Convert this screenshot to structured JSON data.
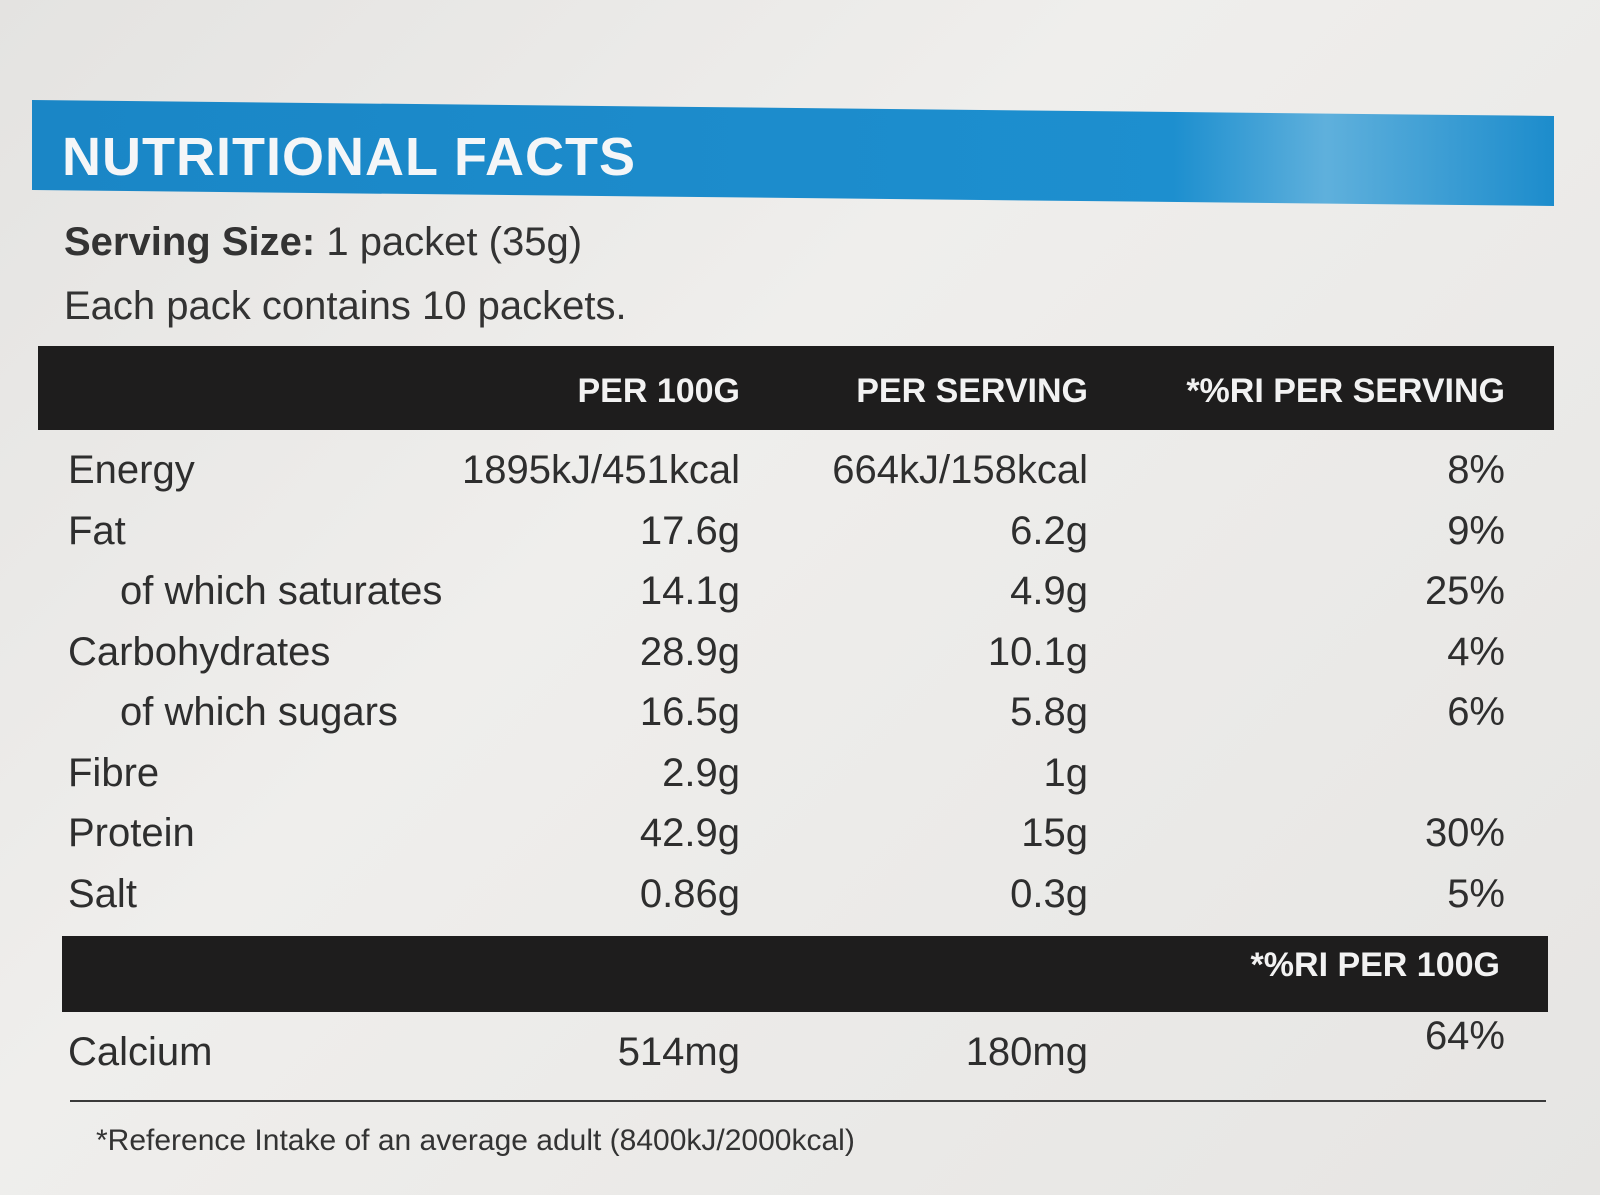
{
  "header": {
    "title": "NUTRITIONAL FACTS",
    "serving_label": "Serving Size:",
    "serving_value": "1 packet (35g)",
    "pack_note": "Each pack contains 10 packets."
  },
  "table": {
    "columns": [
      "PER 100G",
      "PER SERVING",
      "*%RI PER SERVING"
    ],
    "rows": [
      {
        "name": "Energy",
        "per_100g": "1895kJ/451kcal",
        "per_serving": "664kJ/158kcal",
        "ri": "8%"
      },
      {
        "name": "Fat",
        "per_100g": "17.6g",
        "per_serving": "6.2g",
        "ri": "9%",
        "sub": [
          {
            "name": "of which saturates",
            "per_100g": "14.1g",
            "per_serving": "4.9g",
            "ri": "25%"
          }
        ]
      },
      {
        "name": "Carbohydrates",
        "per_100g": "28.9g",
        "per_serving": "10.1g",
        "ri": "4%",
        "sub": [
          {
            "name": "of which sugars",
            "per_100g": "16.5g",
            "per_serving": "5.8g",
            "ri": "6%"
          }
        ]
      },
      {
        "name": "Fibre",
        "per_100g": "2.9g",
        "per_serving": "1g"
      },
      {
        "name": "Protein",
        "per_100g": "42.9g",
        "per_serving": "15g",
        "ri": "30%"
      },
      {
        "name": "Salt",
        "per_100g": "0.86g",
        "per_serving": "0.3g",
        "ri": "5%"
      }
    ],
    "second_header": "*%RI PER 100G",
    "calcium": {
      "name": "Calcium",
      "per_100g": "514mg",
      "per_serving": "180mg",
      "ri": "64%"
    }
  },
  "footnote": "*Reference Intake of an average adult (8400kJ/2000kcal)"
}
